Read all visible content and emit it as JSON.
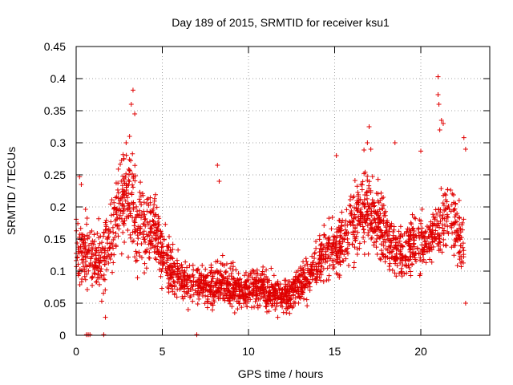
{
  "chart_data": {
    "type": "scatter",
    "title": "Day 189 of 2015, SRMTID for receiver ksu1",
    "xlabel": "GPS time / hours",
    "ylabel": "SRMTID / TECUs",
    "xlim": [
      0,
      24
    ],
    "ylim": [
      0,
      0.45
    ],
    "x_ticks": [
      0,
      5,
      10,
      15,
      20
    ],
    "x_tick_labels": [
      "0",
      "5",
      "10",
      "15",
      "20"
    ],
    "y_ticks": [
      0,
      0.05,
      0.1,
      0.15,
      0.2,
      0.25,
      0.3,
      0.35,
      0.4,
      0.45
    ],
    "y_tick_labels": [
      "0",
      "0.05",
      "0.1",
      "0.15",
      "0.2",
      "0.25",
      "0.3",
      "0.35",
      "0.4",
      "0.45"
    ],
    "grid": true,
    "marker": "+",
    "series": [
      {
        "name": "SRMTID",
        "color": "#e00000",
        "envelope": {
          "x": [
            0,
            0.5,
            1,
            1.5,
            2,
            2.5,
            3,
            3.5,
            4,
            4.5,
            5,
            5.5,
            6,
            6.5,
            7,
            7.5,
            8,
            8.5,
            9,
            9.5,
            10,
            10.5,
            11,
            11.5,
            12,
            12.5,
            13,
            13.5,
            14,
            14.5,
            15,
            15.5,
            16,
            16.5,
            17,
            17.5,
            18,
            18.5,
            19,
            19.5,
            20,
            20.5,
            21,
            21.5,
            22,
            22.5
          ],
          "y_center": [
            0.14,
            0.13,
            0.12,
            0.11,
            0.16,
            0.2,
            0.22,
            0.18,
            0.16,
            0.17,
            0.13,
            0.1,
            0.09,
            0.085,
            0.08,
            0.075,
            0.08,
            0.085,
            0.075,
            0.07,
            0.075,
            0.08,
            0.07,
            0.065,
            0.06,
            0.07,
            0.08,
            0.09,
            0.11,
            0.13,
            0.14,
            0.15,
            0.17,
            0.19,
            0.2,
            0.18,
            0.15,
            0.13,
            0.13,
            0.14,
            0.15,
            0.14,
            0.16,
            0.19,
            0.17,
            0.13
          ],
          "y_spread": [
            0.05,
            0.06,
            0.05,
            0.05,
            0.06,
            0.07,
            0.08,
            0.07,
            0.06,
            0.06,
            0.05,
            0.04,
            0.035,
            0.035,
            0.03,
            0.03,
            0.035,
            0.035,
            0.03,
            0.03,
            0.03,
            0.035,
            0.03,
            0.03,
            0.025,
            0.03,
            0.03,
            0.035,
            0.04,
            0.045,
            0.05,
            0.05,
            0.06,
            0.065,
            0.07,
            0.06,
            0.05,
            0.045,
            0.045,
            0.05,
            0.05,
            0.05,
            0.06,
            0.07,
            0.06,
            0.05
          ]
        },
        "peaks": [
          {
            "x": 3.3,
            "y": 0.382
          },
          {
            "x": 3.2,
            "y": 0.36
          },
          {
            "x": 3.4,
            "y": 0.345
          },
          {
            "x": 3.1,
            "y": 0.31
          },
          {
            "x": 2.9,
            "y": 0.3
          },
          {
            "x": 8.2,
            "y": 0.265
          },
          {
            "x": 8.3,
            "y": 0.24
          },
          {
            "x": 0.2,
            "y": 0.247
          },
          {
            "x": 0.3,
            "y": 0.235
          },
          {
            "x": 15.1,
            "y": 0.28
          },
          {
            "x": 17.0,
            "y": 0.325
          },
          {
            "x": 16.9,
            "y": 0.3
          },
          {
            "x": 17.1,
            "y": 0.29
          },
          {
            "x": 18.5,
            "y": 0.3
          },
          {
            "x": 20.0,
            "y": 0.287
          },
          {
            "x": 21.0,
            "y": 0.403
          },
          {
            "x": 21.0,
            "y": 0.375
          },
          {
            "x": 21.05,
            "y": 0.36
          },
          {
            "x": 21.2,
            "y": 0.335
          },
          {
            "x": 21.3,
            "y": 0.33
          },
          {
            "x": 21.1,
            "y": 0.32
          },
          {
            "x": 22.5,
            "y": 0.308
          },
          {
            "x": 22.6,
            "y": 0.29
          },
          {
            "x": 6.5,
            "y": 0.04
          },
          {
            "x": 9.2,
            "y": 0.035
          },
          {
            "x": 11.7,
            "y": 0.028
          },
          {
            "x": 12.2,
            "y": 0.035
          },
          {
            "x": 22.6,
            "y": 0.05
          },
          {
            "x": 1.7,
            "y": 0.028
          },
          {
            "x": 0.8,
            "y": 0.001
          },
          {
            "x": 0.7,
            "y": 0.001
          },
          {
            "x": 0.6,
            "y": 0.001
          },
          {
            "x": 1.6,
            "y": 0.001
          },
          {
            "x": 7.0,
            "y": 0.001
          }
        ]
      }
    ]
  }
}
